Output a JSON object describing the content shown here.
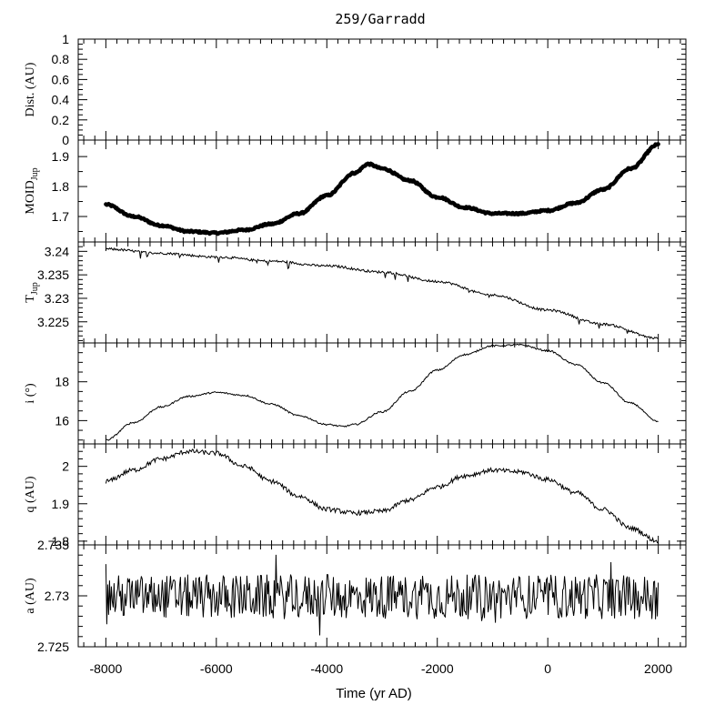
{
  "figure": {
    "title": "259/Garradd",
    "xlabel": "Time (yr AD)"
  },
  "chart_data": [
    {
      "type": "line",
      "name": "dist",
      "ylabel": "Dist. (AU)",
      "ylim": [
        0,
        1
      ],
      "ymajor": [
        0,
        0.2,
        0.4,
        0.6,
        0.8,
        1
      ],
      "yticklabels": [
        "0",
        "0.2",
        "0.4",
        "0.6",
        "0.8",
        "1"
      ],
      "yminor": [
        0.05,
        0.1,
        0.15,
        0.25,
        0.3,
        0.35,
        0.45,
        0.5,
        0.55,
        0.65,
        0.7,
        0.75,
        0.85,
        0.9,
        0.95
      ],
      "x": [],
      "y": []
    },
    {
      "type": "line",
      "name": "moid",
      "ylabel": "MOID",
      "ylabel_sub": "Jup",
      "ylim": [
        1.615,
        1.955
      ],
      "ymajor": [
        1.7,
        1.8,
        1.9
      ],
      "yticklabels": [
        "1.7",
        "1.8",
        "1.9"
      ],
      "yminor": [
        1.65,
        1.75,
        1.85
      ],
      "style": "thick",
      "x": [
        -8000,
        -7500,
        -7000,
        -6500,
        -6000,
        -5500,
        -5000,
        -4500,
        -4000,
        -3500,
        -3250,
        -3000,
        -2500,
        -2000,
        -1500,
        -1000,
        -500,
        0,
        500,
        1000,
        1500,
        2000
      ],
      "y": [
        1.74,
        1.7,
        1.67,
        1.65,
        1.645,
        1.655,
        1.675,
        1.71,
        1.77,
        1.845,
        1.875,
        1.86,
        1.82,
        1.765,
        1.73,
        1.71,
        1.71,
        1.72,
        1.745,
        1.79,
        1.86,
        1.94
      ]
    },
    {
      "type": "line",
      "name": "tjup",
      "ylabel": "T",
      "ylabel_sub": "Jup",
      "ylim": [
        3.2205,
        3.242
      ],
      "ymajor": [
        3.225,
        3.23,
        3.235,
        3.24
      ],
      "yticklabels": [
        "3.225",
        "3.23",
        "3.235",
        "3.24"
      ],
      "yminor": [
        3.221,
        3.222,
        3.223,
        3.224,
        3.226,
        3.227,
        3.228,
        3.229,
        3.231,
        3.232,
        3.233,
        3.234,
        3.236,
        3.237,
        3.238,
        3.239,
        3.241
      ],
      "x": [
        -8000,
        -7000,
        -6000,
        -5000,
        -4000,
        -3000,
        -2000,
        -1000,
        0,
        1000,
        2000
      ],
      "y": [
        3.2405,
        3.2396,
        3.2388,
        3.2379,
        3.2369,
        3.2356,
        3.2336,
        3.2307,
        3.2275,
        3.2245,
        3.2215
      ]
    },
    {
      "type": "line",
      "name": "incl",
      "ylabel": "i (°)",
      "ylim": [
        14.8,
        20.0
      ],
      "ymajor": [
        16,
        18
      ],
      "yticklabels": [
        "16",
        "18"
      ],
      "yminor": [
        15,
        15.5,
        16.5,
        17,
        17.5,
        18.5,
        19,
        19.5
      ],
      "x": [
        -8000,
        -7500,
        -7000,
        -6500,
        -6000,
        -5500,
        -5000,
        -4500,
        -4000,
        -3700,
        -3500,
        -3000,
        -2500,
        -2000,
        -1500,
        -1000,
        -500,
        0,
        500,
        1000,
        1500,
        2000
      ],
      "y": [
        15.0,
        15.9,
        16.7,
        17.25,
        17.45,
        17.3,
        16.85,
        16.25,
        15.8,
        15.7,
        15.8,
        16.45,
        17.5,
        18.6,
        19.4,
        19.85,
        19.9,
        19.6,
        18.9,
        17.95,
        16.9,
        15.95
      ],
      "noise": 0.04
    },
    {
      "type": "line",
      "name": "q",
      "ylabel": "q (AU)",
      "ylim": [
        1.79,
        2.06
      ],
      "ymajor": [
        1.8,
        1.9,
        2
      ],
      "yticklabels": [
        "1.8",
        "1.9",
        "2"
      ],
      "yminor": [
        1.82,
        1.84,
        1.86,
        1.88,
        1.92,
        1.94,
        1.96,
        1.98,
        2.02,
        2.04
      ],
      "x": [
        -8000,
        -7500,
        -7000,
        -6500,
        -6000,
        -5500,
        -5000,
        -4500,
        -4000,
        -3500,
        -3000,
        -2500,
        -2000,
        -1500,
        -1000,
        -500,
        0,
        500,
        1000,
        1500,
        2000
      ],
      "y": [
        1.96,
        1.99,
        2.02,
        2.04,
        2.035,
        2.0,
        1.96,
        1.92,
        1.885,
        1.875,
        1.88,
        1.91,
        1.945,
        1.975,
        1.99,
        1.985,
        1.965,
        1.93,
        1.885,
        1.835,
        1.8
      ],
      "noise": 0.006
    },
    {
      "type": "line",
      "name": "a",
      "ylabel": "a (AU)",
      "ylim": [
        2.725,
        2.735
      ],
      "ymajor": [
        2.725,
        2.73,
        2.735
      ],
      "yticklabels": [
        "2.725",
        "2.73",
        "2.735"
      ],
      "yminor": [
        2.726,
        2.727,
        2.728,
        2.729,
        2.731,
        2.732,
        2.733,
        2.734
      ],
      "x": [
        -8000,
        2000
      ],
      "y": [
        2.7299,
        2.7299
      ],
      "noise": 0.0022
    }
  ],
  "xaxis": {
    "xlim": [
      -8500,
      2500
    ],
    "xmajor": [
      -8000,
      -6000,
      -4000,
      -2000,
      0,
      2000
    ],
    "xticklabels": [
      "-8000",
      "-6000",
      "-4000",
      "-2000",
      "0",
      "2000"
    ],
    "xminor": [
      -8400,
      -8200,
      -7800,
      -7600,
      -7400,
      -7200,
      -7000,
      -6800,
      -6600,
      -6400,
      -6200,
      -5800,
      -5600,
      -5400,
      -5200,
      -5000,
      -4800,
      -4600,
      -4400,
      -4200,
      -3800,
      -3600,
      -3400,
      -3200,
      -3000,
      -2800,
      -2600,
      -2400,
      -2200,
      -1800,
      -1600,
      -1400,
      -1200,
      -1000,
      -800,
      -600,
      -400,
      -200,
      200,
      400,
      600,
      800,
      1000,
      1200,
      1400,
      1600,
      1800,
      2200,
      2400
    ]
  }
}
